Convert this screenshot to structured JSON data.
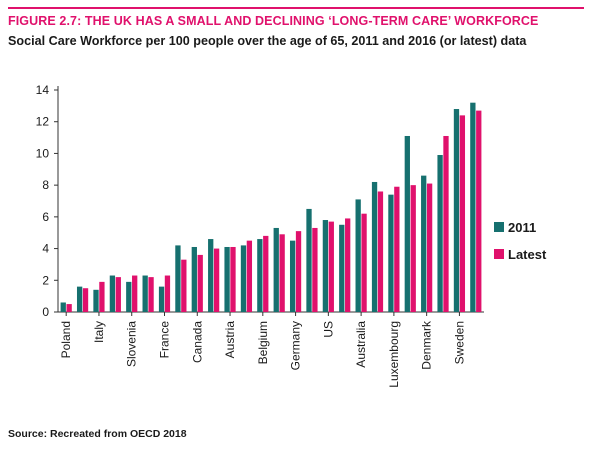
{
  "figure": {
    "title": "FIGURE 2.7: THE UK HAS A SMALL AND DECLINING ‘LONG-TERM CARE’ WORKFORCE",
    "subtitle": "Social Care Workforce per 100 people over the age of 65, 2011 and 2016 (or latest) data",
    "source": "Source: Recreated from OECD 2018"
  },
  "chart_data": {
    "type": "bar",
    "title": "Social Care Workforce per 100 people over the age of 65, 2011 and 2016 (or latest) data",
    "categories": [
      "Poland",
      "Italy",
      "Slovenia",
      "France",
      "Canada",
      "Austria",
      "Belgium",
      "Germany",
      "US",
      "Australia",
      "Luxembourg",
      "Denmark",
      "Sweden"
    ],
    "bar_pairs": [
      [
        0.6,
        0.5
      ],
      [
        1.6,
        1.5
      ],
      [
        1.4,
        1.9
      ],
      [
        2.3,
        2.2
      ],
      [
        1.9,
        2.3
      ],
      [
        2.3,
        2.2
      ],
      [
        1.6,
        2.3
      ],
      [
        4.2,
        3.3
      ],
      [
        4.1,
        3.6
      ],
      [
        4.6,
        4.0
      ],
      [
        4.1,
        4.1
      ],
      [
        4.2,
        4.5
      ],
      [
        4.6,
        4.8
      ],
      [
        5.3,
        4.9
      ],
      [
        4.5,
        5.1
      ],
      [
        6.5,
        5.3
      ],
      [
        5.8,
        5.7
      ],
      [
        5.5,
        5.9
      ],
      [
        7.1,
        6.2
      ],
      [
        8.2,
        7.6
      ],
      [
        7.4,
        7.9
      ],
      [
        11.1,
        8.0
      ],
      [
        8.6,
        8.1
      ],
      [
        9.9,
        11.1
      ],
      [
        12.8,
        12.4
      ],
      [
        13.2,
        12.7
      ]
    ],
    "label_every": 2,
    "series": [
      {
        "name": "2011",
        "color": "#16706f"
      },
      {
        "name": "Latest",
        "color": "#e0116c"
      }
    ],
    "yticks": [
      0,
      2,
      4,
      6,
      8,
      10,
      12,
      14
    ],
    "ylim": [
      0,
      14
    ],
    "legend": "right",
    "grid": false
  }
}
